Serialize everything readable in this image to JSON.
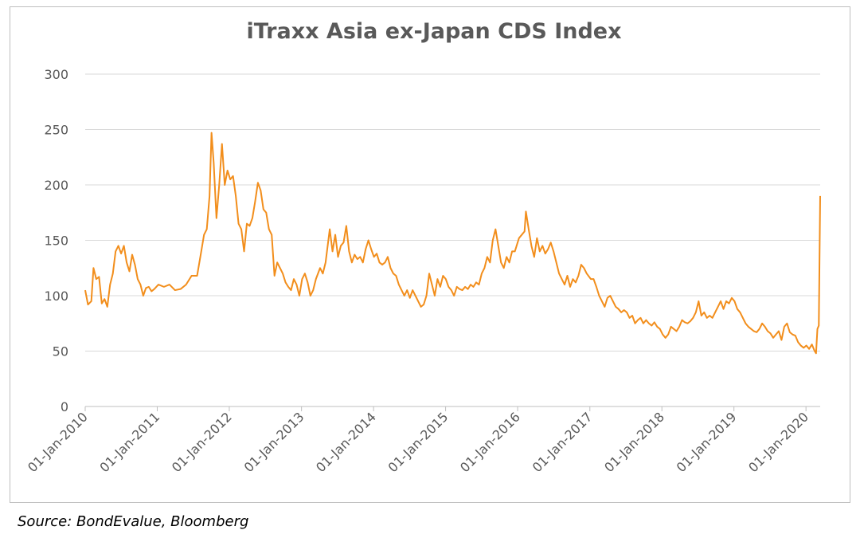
{
  "chart_data": {
    "type": "line",
    "title": "iTraxx Asia ex-Japan CDS Index",
    "x": [
      "2010-01-01",
      "2010-01-15",
      "2010-02-01",
      "2010-02-12",
      "2010-02-26",
      "2010-03-12",
      "2010-03-26",
      "2010-04-09",
      "2010-04-23",
      "2010-05-07",
      "2010-05-21",
      "2010-06-04",
      "2010-06-18",
      "2010-07-02",
      "2010-07-16",
      "2010-07-30",
      "2010-08-13",
      "2010-08-27",
      "2010-09-10",
      "2010-09-24",
      "2010-10-08",
      "2010-10-22",
      "2010-11-05",
      "2010-11-19",
      "2010-12-03",
      "2010-12-17",
      "2011-01-07",
      "2011-02-04",
      "2011-03-04",
      "2011-04-01",
      "2011-04-29",
      "2011-05-27",
      "2011-06-24",
      "2011-07-22",
      "2011-08-12",
      "2011-08-26",
      "2011-09-09",
      "2011-09-23",
      "2011-10-03",
      "2011-10-14",
      "2011-10-28",
      "2011-11-11",
      "2011-11-25",
      "2011-12-09",
      "2011-12-23",
      "2012-01-06",
      "2012-01-20",
      "2012-02-03",
      "2012-02-17",
      "2012-03-02",
      "2012-03-16",
      "2012-03-30",
      "2012-04-13",
      "2012-04-27",
      "2012-05-11",
      "2012-05-25",
      "2012-06-08",
      "2012-06-22",
      "2012-07-06",
      "2012-07-20",
      "2012-08-03",
      "2012-08-17",
      "2012-08-31",
      "2012-09-14",
      "2012-09-28",
      "2012-10-12",
      "2012-10-26",
      "2012-11-09",
      "2012-11-23",
      "2012-12-07",
      "2012-12-21",
      "2013-01-04",
      "2013-01-18",
      "2013-02-01",
      "2013-02-15",
      "2013-03-01",
      "2013-03-15",
      "2013-04-05",
      "2013-04-19",
      "2013-05-03",
      "2013-05-24",
      "2013-06-07",
      "2013-06-21",
      "2013-07-05",
      "2013-07-19",
      "2013-08-02",
      "2013-08-16",
      "2013-08-30",
      "2013-09-13",
      "2013-09-27",
      "2013-10-11",
      "2013-10-25",
      "2013-11-08",
      "2013-11-22",
      "2013-12-06",
      "2013-12-20",
      "2014-01-03",
      "2014-01-17",
      "2014-01-31",
      "2014-02-14",
      "2014-02-28",
      "2014-03-14",
      "2014-03-28",
      "2014-04-11",
      "2014-04-25",
      "2014-05-09",
      "2014-05-23",
      "2014-06-06",
      "2014-06-20",
      "2014-07-04",
      "2014-07-18",
      "2014-08-01",
      "2014-08-15",
      "2014-08-29",
      "2014-09-12",
      "2014-09-26",
      "2014-10-10",
      "2014-10-24",
      "2014-11-07",
      "2014-11-21",
      "2014-12-05",
      "2014-12-19",
      "2015-01-02",
      "2015-01-16",
      "2015-01-30",
      "2015-02-13",
      "2015-02-27",
      "2015-03-13",
      "2015-03-27",
      "2015-04-10",
      "2015-04-24",
      "2015-05-08",
      "2015-05-22",
      "2015-06-05",
      "2015-06-19",
      "2015-07-03",
      "2015-07-17",
      "2015-07-31",
      "2015-08-14",
      "2015-08-28",
      "2015-09-11",
      "2015-09-25",
      "2015-10-09",
      "2015-10-23",
      "2015-11-06",
      "2015-11-20",
      "2015-12-04",
      "2015-12-18",
      "2016-01-08",
      "2016-01-22",
      "2016-02-05",
      "2016-02-12",
      "2016-02-26",
      "2016-03-11",
      "2016-03-25",
      "2016-04-08",
      "2016-04-22",
      "2016-05-06",
      "2016-05-20",
      "2016-06-03",
      "2016-06-17",
      "2016-07-01",
      "2016-07-15",
      "2016-07-29",
      "2016-08-12",
      "2016-08-26",
      "2016-09-09",
      "2016-09-23",
      "2016-10-07",
      "2016-10-21",
      "2016-11-04",
      "2016-11-18",
      "2016-12-02",
      "2016-12-16",
      "2017-01-06",
      "2017-01-20",
      "2017-02-03",
      "2017-02-17",
      "2017-03-03",
      "2017-03-17",
      "2017-03-31",
      "2017-04-14",
      "2017-04-28",
      "2017-05-12",
      "2017-05-26",
      "2017-06-09",
      "2017-06-23",
      "2017-07-07",
      "2017-07-21",
      "2017-08-04",
      "2017-08-18",
      "2017-09-01",
      "2017-09-15",
      "2017-09-29",
      "2017-10-13",
      "2017-10-27",
      "2017-11-10",
      "2017-11-24",
      "2017-12-08",
      "2017-12-22",
      "2018-01-05",
      "2018-01-19",
      "2018-02-02",
      "2018-02-16",
      "2018-03-02",
      "2018-03-16",
      "2018-03-30",
      "2018-04-13",
      "2018-04-27",
      "2018-05-11",
      "2018-05-25",
      "2018-06-08",
      "2018-06-22",
      "2018-07-06",
      "2018-07-20",
      "2018-08-03",
      "2018-08-17",
      "2018-08-31",
      "2018-09-14",
      "2018-09-28",
      "2018-10-12",
      "2018-10-26",
      "2018-11-09",
      "2018-11-23",
      "2018-12-07",
      "2018-12-21",
      "2019-01-04",
      "2019-01-18",
      "2019-02-01",
      "2019-02-15",
      "2019-03-01",
      "2019-03-15",
      "2019-03-29",
      "2019-04-12",
      "2019-04-26",
      "2019-05-10",
      "2019-05-24",
      "2019-06-07",
      "2019-06-21",
      "2019-07-05",
      "2019-07-19",
      "2019-08-02",
      "2019-08-16",
      "2019-08-30",
      "2019-09-13",
      "2019-09-27",
      "2019-10-11",
      "2019-10-25",
      "2019-11-08",
      "2019-11-22",
      "2019-12-06",
      "2019-12-20",
      "2020-01-03",
      "2020-01-17",
      "2020-01-31",
      "2020-02-14",
      "2020-02-21",
      "2020-02-28",
      "2020-03-06",
      "2020-03-13"
    ],
    "series": [
      {
        "name": "iTraxx Asia ex-Japan CDS Index",
        "color": "#f28e1c",
        "values": [
          105,
          92,
          95,
          125,
          115,
          117,
          93,
          97,
          90,
          110,
          120,
          140,
          145,
          138,
          145,
          130,
          122,
          137,
          128,
          115,
          110,
          100,
          107,
          108,
          104,
          106,
          110,
          108,
          110,
          105,
          106,
          110,
          118,
          118,
          140,
          155,
          160,
          190,
          247,
          220,
          170,
          200,
          237,
          200,
          213,
          205,
          208,
          190,
          165,
          160,
          140,
          165,
          163,
          170,
          185,
          202,
          195,
          178,
          175,
          160,
          155,
          118,
          130,
          125,
          120,
          112,
          108,
          105,
          115,
          110,
          100,
          115,
          120,
          112,
          100,
          105,
          115,
          125,
          120,
          130,
          160,
          140,
          155,
          135,
          145,
          148,
          163,
          140,
          130,
          137,
          133,
          135,
          130,
          142,
          150,
          142,
          135,
          138,
          130,
          128,
          130,
          135,
          125,
          120,
          118,
          110,
          105,
          100,
          105,
          98,
          105,
          100,
          95,
          90,
          92,
          100,
          120,
          110,
          100,
          115,
          108,
          118,
          115,
          108,
          105,
          100,
          108,
          106,
          105,
          108,
          106,
          110,
          108,
          112,
          110,
          120,
          125,
          135,
          130,
          150,
          160,
          145,
          130,
          125,
          135,
          130,
          140,
          140,
          152,
          155,
          158,
          176,
          160,
          145,
          135,
          152,
          140,
          145,
          138,
          142,
          148,
          140,
          130,
          120,
          115,
          110,
          118,
          108,
          115,
          112,
          118,
          128,
          125,
          120,
          115,
          115,
          108,
          100,
          95,
          90,
          98,
          100,
          95,
          90,
          88,
          85,
          87,
          85,
          80,
          82,
          75,
          78,
          80,
          75,
          78,
          75,
          73,
          76,
          72,
          70,
          65,
          62,
          65,
          72,
          70,
          68,
          72,
          78,
          76,
          75,
          77,
          80,
          85,
          95,
          82,
          85,
          80,
          82,
          80,
          85,
          90,
          95,
          88,
          95,
          93,
          98,
          95,
          88,
          85,
          80,
          75,
          72,
          70,
          68,
          67,
          70,
          75,
          72,
          68,
          66,
          62,
          65,
          68,
          60,
          72,
          75,
          67,
          65,
          64,
          58,
          55,
          53,
          55,
          52,
          56,
          50,
          48,
          70,
          73,
          190
        ]
      }
    ],
    "xlim": [
      "2010-01-01",
      "2020-03-13"
    ],
    "xticks": [
      {
        "value": "2010-01-01",
        "label": "01-Jan-2010"
      },
      {
        "value": "2011-01-01",
        "label": "01-Jan-2011"
      },
      {
        "value": "2012-01-01",
        "label": "01-Jan-2012"
      },
      {
        "value": "2013-01-01",
        "label": "01-Jan-2013"
      },
      {
        "value": "2014-01-01",
        "label": "01-Jan-2014"
      },
      {
        "value": "2015-01-01",
        "label": "01-Jan-2015"
      },
      {
        "value": "2016-01-01",
        "label": "01-Jan-2016"
      },
      {
        "value": "2017-01-01",
        "label": "01-Jan-2017"
      },
      {
        "value": "2018-01-01",
        "label": "01-Jan-2018"
      },
      {
        "value": "2019-01-01",
        "label": "01-Jan-2019"
      },
      {
        "value": "2020-01-01",
        "label": "01-Jan-2020"
      }
    ],
    "ylim": [
      0,
      300
    ],
    "yticks": [
      0,
      50,
      100,
      150,
      200,
      250,
      300
    ],
    "grid": true
  },
  "source": "Source: BondEvalue, Bloomberg"
}
